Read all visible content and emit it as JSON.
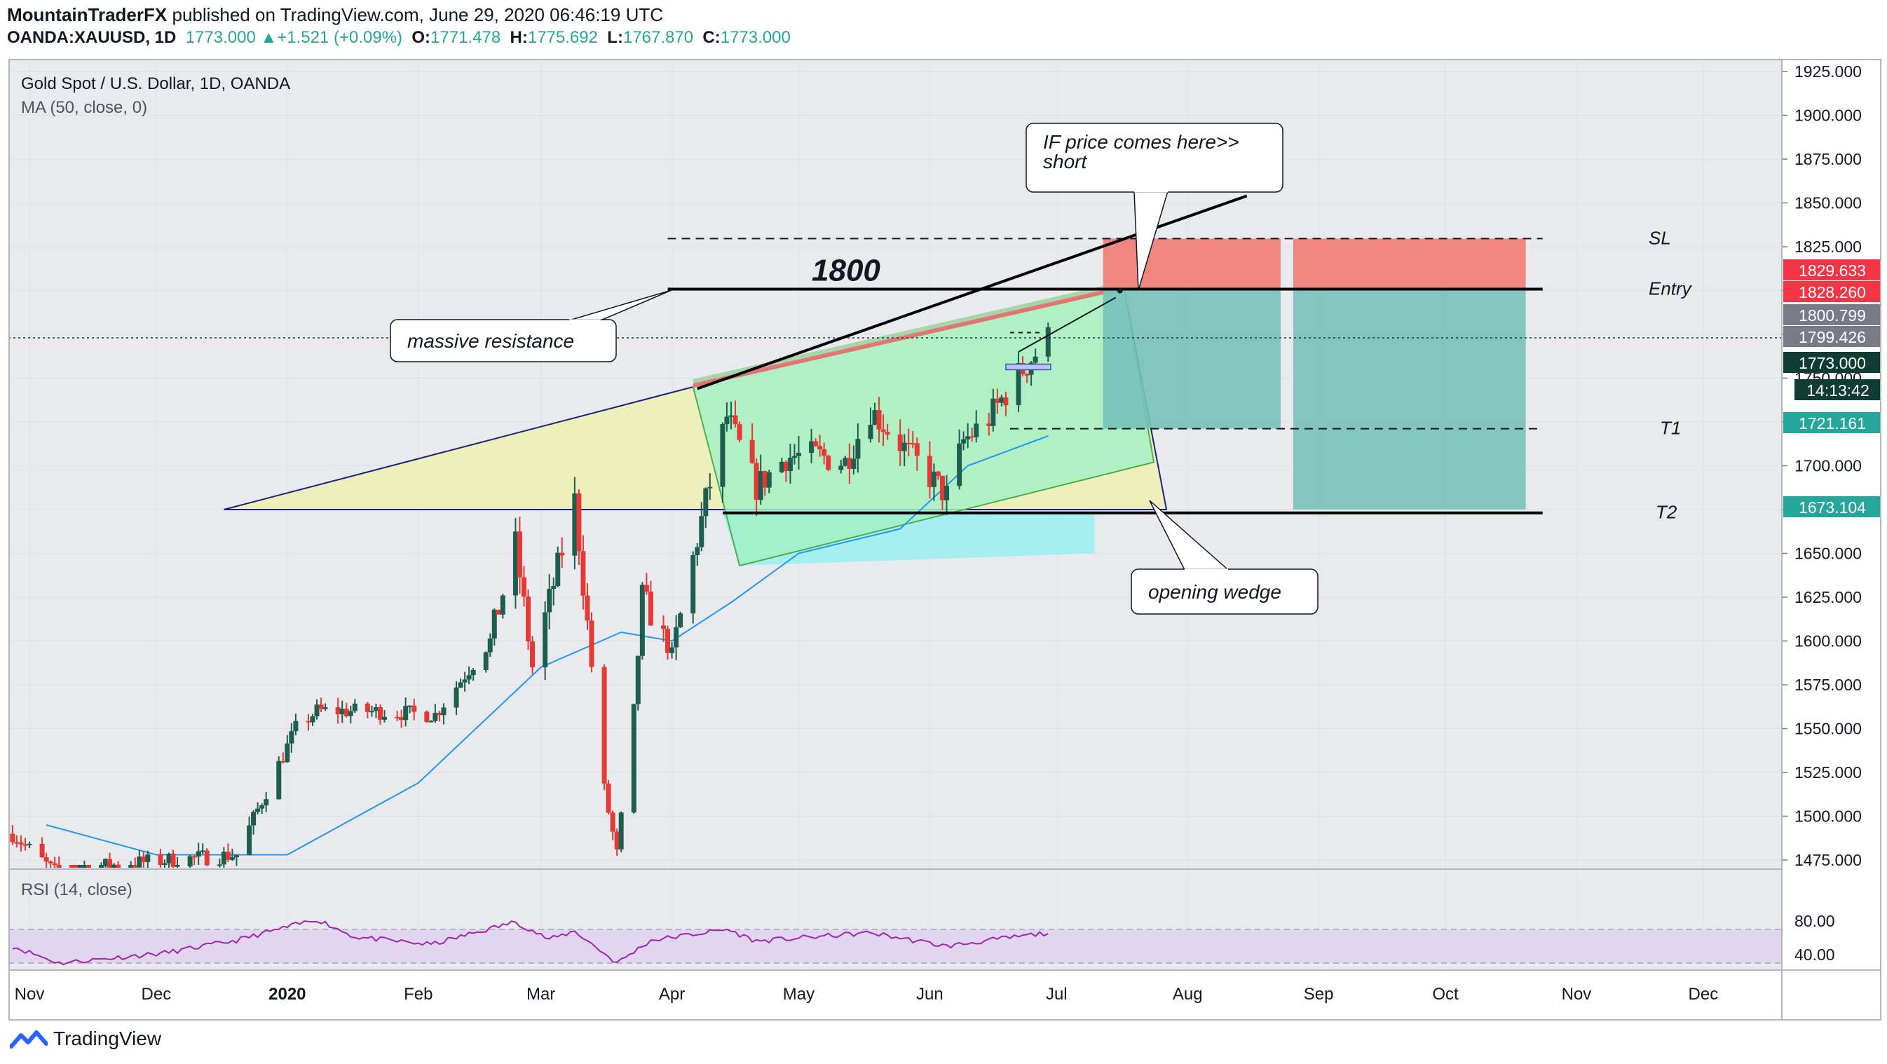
{
  "header": {
    "author": "MountainTraderFX",
    "published": "published on TradingView.com, June 29, 2020 06:46:19 UTC",
    "symbol": "OANDA:XAUUSD, 1D",
    "last": "1773.000",
    "change": "+1.521 (+0.09%)",
    "o_label": "O:",
    "o": "1771.478",
    "h_label": "H:",
    "h": "1775.692",
    "l_label": "L:",
    "l": "1767.870",
    "c_label": "C:",
    "c": "1773.000"
  },
  "legend": {
    "title": "Gold Spot / U.S. Dollar, 1D, OANDA",
    "ma": "MA (50, close, 0)",
    "rsi": "RSI (14, close)"
  },
  "footer": {
    "brand": "TradingView"
  },
  "colors": {
    "up": "#1e5e50",
    "down": "#e53935",
    "ma": "#2196f3",
    "rsi": "#9c27b0",
    "rsi_band": "#e2d5ef",
    "wedge_yellow": "#eef0b0",
    "wedge_green": "#a4f0c6",
    "wedge_cyan": "#9ff0ef",
    "stop_red": "#ef8680",
    "target_teal": "#78c1b9",
    "label_red": "#f23645",
    "label_teal": "#26a69a",
    "label_gray": "#787b86",
    "label_dark": "#0f3d33"
  },
  "annotations": {
    "resistance_level": "1800",
    "massive_resistance": "massive resistance",
    "opening_wedge": "opening wedge",
    "callout_line1": "IF price comes here>>",
    "callout_line2": "short",
    "sl": "SL",
    "entry": "Entry",
    "t1": "T1",
    "t2": "T2"
  },
  "chart_data": {
    "type": "candlestick",
    "title": "Gold Spot / U.S. Dollar, 1D, OANDA",
    "x_labels": [
      "Nov",
      "Dec",
      "2020",
      "Feb",
      "Mar",
      "Apr",
      "May",
      "Jun",
      "Jul",
      "Aug",
      "Sep",
      "Oct",
      "Nov",
      "Dec"
    ],
    "y_ticks": [
      "1925.000",
      "1900.000",
      "1875.000",
      "1850.000",
      "1825.000",
      "1800.000",
      "1775.000",
      "1750.000",
      "1725.000",
      "1700.000",
      "1675.000",
      "1650.000",
      "1625.000",
      "1600.000",
      "1575.000",
      "1550.000",
      "1525.000",
      "1500.000",
      "1475.000"
    ],
    "ylim": [
      1469,
      1931
    ],
    "price_labels": [
      {
        "value": "1829.633",
        "color": "red"
      },
      {
        "value": "1828.260",
        "color": "red"
      },
      {
        "value": "1800.799",
        "color": "gray"
      },
      {
        "value": "1799.426",
        "color": "gray"
      },
      {
        "value": "1773.000",
        "color": "dark"
      },
      {
        "value": "14:13:42",
        "color": "dark"
      },
      {
        "value": "1721.161",
        "color": "teal"
      },
      {
        "value": "1673.104",
        "color": "teal"
      }
    ],
    "levels": {
      "sl": 1829.633,
      "entry": 1800.799,
      "t1": 1721.161,
      "t2": 1673.104,
      "current": 1773.0
    },
    "rsi_ticks": [
      "80.00",
      "40.00"
    ],
    "rsi_band": [
      30,
      70
    ],
    "anchor_points": [
      {
        "date": "2019-10-28",
        "close": 1490
      },
      {
        "date": "2019-11-07",
        "close": 1468
      },
      {
        "date": "2019-11-20",
        "close": 1472
      },
      {
        "date": "2019-12-04",
        "close": 1475
      },
      {
        "date": "2019-12-20",
        "close": 1478
      },
      {
        "date": "2020-01-03",
        "close": 1550
      },
      {
        "date": "2020-01-08",
        "close": 1560
      },
      {
        "date": "2020-01-20",
        "close": 1560
      },
      {
        "date": "2020-02-05",
        "close": 1558
      },
      {
        "date": "2020-02-18",
        "close": 1600
      },
      {
        "date": "2020-02-24",
        "close": 1655
      },
      {
        "date": "2020-02-28",
        "close": 1585
      },
      {
        "date": "2020-03-09",
        "close": 1680
      },
      {
        "date": "2020-03-16",
        "close": 1515
      },
      {
        "date": "2020-03-19",
        "close": 1478
      },
      {
        "date": "2020-03-23",
        "close": 1560
      },
      {
        "date": "2020-03-25",
        "close": 1625
      },
      {
        "date": "2020-04-01",
        "close": 1592
      },
      {
        "date": "2020-04-09",
        "close": 1680
      },
      {
        "date": "2020-04-14",
        "close": 1728
      },
      {
        "date": "2020-04-21",
        "close": 1688
      },
      {
        "date": "2020-04-28",
        "close": 1705
      },
      {
        "date": "2020-05-05",
        "close": 1706
      },
      {
        "date": "2020-05-12",
        "close": 1702
      },
      {
        "date": "2020-05-18",
        "close": 1732
      },
      {
        "date": "2020-05-26",
        "close": 1710
      },
      {
        "date": "2020-06-05",
        "close": 1683
      },
      {
        "date": "2020-06-09",
        "close": 1714
      },
      {
        "date": "2020-06-15",
        "close": 1727
      },
      {
        "date": "2020-06-22",
        "close": 1752
      },
      {
        "date": "2020-06-29",
        "close": 1773
      }
    ],
    "ma_points": [
      {
        "date": "2019-11-05",
        "value": 1495
      },
      {
        "date": "2019-12-01",
        "value": 1478
      },
      {
        "date": "2020-01-01",
        "value": 1478
      },
      {
        "date": "2020-02-01",
        "value": 1519
      },
      {
        "date": "2020-03-01",
        "value": 1585
      },
      {
        "date": "2020-03-20",
        "value": 1605
      },
      {
        "date": "2020-04-01",
        "value": 1600
      },
      {
        "date": "2020-04-15",
        "value": 1622
      },
      {
        "date": "2020-05-01",
        "value": 1650
      },
      {
        "date": "2020-05-25",
        "value": 1664
      },
      {
        "date": "2020-06-10",
        "value": 1700
      },
      {
        "date": "2020-06-29",
        "value": 1717
      }
    ],
    "rsi_points": [
      {
        "date": "2019-10-28",
        "value": 50
      },
      {
        "date": "2019-11-08",
        "value": 30
      },
      {
        "date": "2019-12-03",
        "value": 42
      },
      {
        "date": "2019-12-20",
        "value": 57
      },
      {
        "date": "2020-01-08",
        "value": 82
      },
      {
        "date": "2020-01-17",
        "value": 61
      },
      {
        "date": "2020-02-04",
        "value": 52
      },
      {
        "date": "2020-02-24",
        "value": 79
      },
      {
        "date": "2020-03-03",
        "value": 58
      },
      {
        "date": "2020-03-09",
        "value": 68
      },
      {
        "date": "2020-03-19",
        "value": 30
      },
      {
        "date": "2020-03-27",
        "value": 57
      },
      {
        "date": "2020-04-14",
        "value": 70
      },
      {
        "date": "2020-04-21",
        "value": 56
      },
      {
        "date": "2020-05-18",
        "value": 66
      },
      {
        "date": "2020-06-05",
        "value": 50
      },
      {
        "date": "2020-06-15",
        "value": 57
      },
      {
        "date": "2020-06-29",
        "value": 66
      }
    ],
    "projection": {
      "sl": 1829.633,
      "entry": 1800.799,
      "t1": 1721.161,
      "t2": 1673.104
    }
  }
}
